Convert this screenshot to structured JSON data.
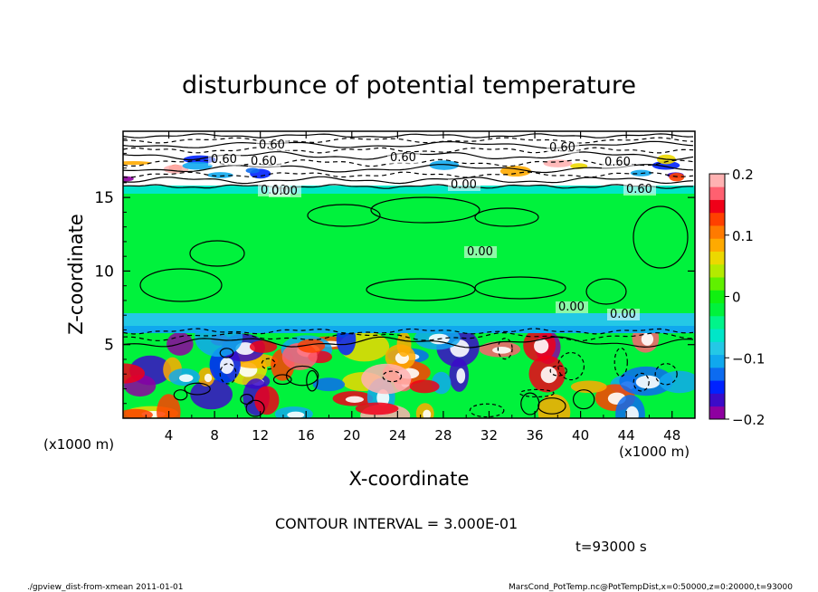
{
  "chart_data": {
    "type": "heatmap",
    "title": "disturbunce of potential temperature",
    "xlabel": "X-coordinate",
    "ylabel": "Z-coordinate",
    "x_unit": "(x1000 m)",
    "x_unit_right": "(x1000 m)",
    "xlim": [
      0,
      50
    ],
    "ylim": [
      0,
      19.5
    ],
    "x_ticks": [
      4,
      8,
      12,
      16,
      20,
      24,
      28,
      32,
      36,
      40,
      44,
      48
    ],
    "y_ticks": [
      5,
      10,
      15
    ],
    "colorbar": {
      "range": [
        -0.2,
        0.2
      ],
      "ticks": [
        0.2,
        0.1,
        0,
        -0.1,
        -0.2
      ],
      "tick_labels": [
        "0.2",
        "0.1",
        "0",
        "−0.1",
        "−0.2"
      ],
      "colors": [
        "#8e00a0",
        "#3b0bc8",
        "#0022ff",
        "#0c6bf0",
        "#10a8ee",
        "#24c8e6",
        "#00e6c8",
        "#00f48a",
        "#00f23c",
        "#10f010",
        "#60f000",
        "#b4ea00",
        "#ecd800",
        "#ffaa00",
        "#ff7a00",
        "#ff4000",
        "#f00018",
        "#ff6070",
        "#ffb2b2"
      ]
    },
    "regions": [
      {
        "z_range": [
          0,
          6
        ],
        "description_value": "mixed (-0.2 to 0.2)"
      },
      {
        "z_range": [
          6,
          7
        ],
        "value": -0.1
      },
      {
        "z_range": [
          7,
          16
        ],
        "value": 0
      },
      {
        "z_range": [
          16,
          19.5
        ],
        "description_value": "mixed"
      }
    ],
    "contour_labels": [
      "0.60",
      "0.60",
      "0.60",
      "0.60",
      "0.60",
      "0.60",
      "0.60",
      "0.00",
      "0.00",
      "0.00",
      "0.00",
      "0.00",
      "0.00"
    ],
    "contour_interval": "CONTOUR INTERVAL = 3.000E-01",
    "time_label": "t=93000 s"
  },
  "footer": {
    "left": "./gpview_dist-from-xmean  2011-01-01",
    "right": "MarsCond_PotTemp.nc@PotTempDist,x=0:50000,z=0:20000,t=93000"
  }
}
